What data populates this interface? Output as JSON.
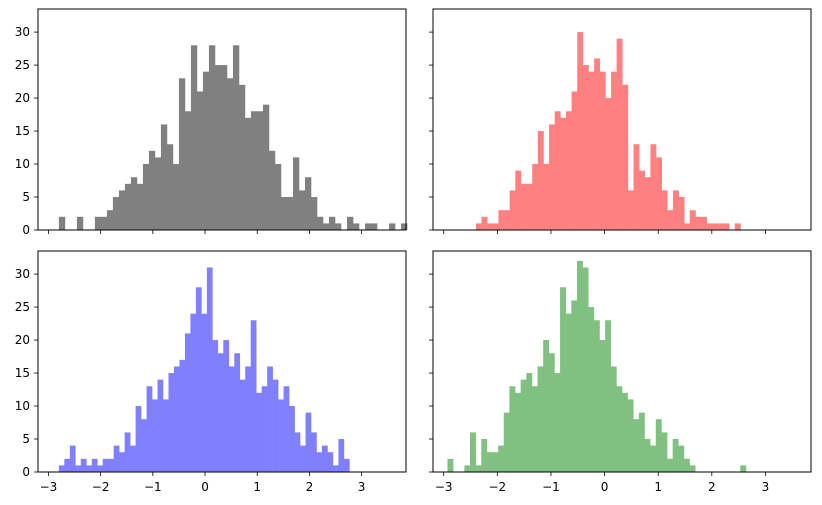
{
  "chart_data": [
    {
      "type": "bar",
      "panel": "top-left",
      "color": "#808080",
      "bin_start": -2.8,
      "bin_width": 0.115,
      "xlim": [
        -3.2,
        3.85
      ],
      "ylim": [
        0,
        33.5
      ],
      "x_ticks": [
        -3,
        -2,
        -1,
        0,
        1,
        2,
        3
      ],
      "y_ticks": [
        0,
        5,
        10,
        15,
        20,
        25,
        30
      ],
      "x_tick_labels_visible": false,
      "y_tick_labels_visible": true,
      "values": [
        2,
        0,
        0,
        2,
        0,
        0,
        2,
        2,
        3,
        5,
        6,
        7,
        8,
        7,
        10,
        12,
        11,
        16,
        13,
        10,
        23,
        18,
        28,
        21,
        24,
        28,
        25,
        25,
        23,
        28,
        22,
        17,
        18,
        18,
        19,
        12,
        10,
        5,
        5,
        11,
        6,
        8,
        5,
        2,
        1,
        2,
        1,
        0,
        2,
        1,
        0,
        1,
        1,
        0,
        0,
        1,
        0,
        1
      ]
    },
    {
      "type": "bar",
      "panel": "top-right",
      "color": "#ff8080",
      "bin_start": -2.4,
      "bin_width": 0.105,
      "xlim": [
        -3.2,
        3.85
      ],
      "ylim": [
        0,
        33.5
      ],
      "x_ticks": [
        -3,
        -2,
        -1,
        0,
        1,
        2,
        3
      ],
      "y_ticks": [
        0,
        5,
        10,
        15,
        20,
        25,
        30
      ],
      "x_tick_labels_visible": false,
      "y_tick_labels_visible": false,
      "values": [
        1,
        2,
        1,
        1,
        3,
        3,
        6,
        9,
        7,
        7,
        10,
        15,
        10,
        16,
        18,
        17,
        18,
        21,
        30,
        25,
        24,
        26,
        24,
        20,
        24,
        29,
        22,
        6,
        13,
        9,
        8,
        13,
        11,
        6,
        3,
        6,
        5,
        1,
        3,
        2,
        2,
        1,
        1,
        1,
        1,
        0,
        1
      ]
    },
    {
      "type": "bar",
      "panel": "bottom-left",
      "color": "#8080ff",
      "bin_start": -2.8,
      "bin_width": 0.105,
      "xlim": [
        -3.2,
        3.85
      ],
      "ylim": [
        0,
        33.5
      ],
      "x_ticks": [
        -3,
        -2,
        -1,
        0,
        1,
        2,
        3
      ],
      "y_ticks": [
        0,
        5,
        10,
        15,
        20,
        25,
        30
      ],
      "x_tick_labels_visible": true,
      "y_tick_labels_visible": true,
      "values": [
        1,
        2,
        4,
        1,
        2,
        1,
        2,
        1,
        2,
        2,
        4,
        3,
        6,
        4,
        10,
        8,
        13,
        11,
        14,
        11,
        15,
        16,
        17,
        21,
        24,
        28,
        24,
        31,
        20,
        18,
        20,
        16,
        18,
        14,
        16,
        23,
        12,
        13,
        16,
        14,
        11,
        13,
        10,
        6,
        4,
        9,
        6,
        3,
        4,
        3,
        1,
        5,
        2
      ]
    },
    {
      "type": "bar",
      "panel": "bottom-right",
      "color": "#80c080",
      "bin_start": -2.93,
      "bin_width": 0.105,
      "xlim": [
        -3.2,
        3.85
      ],
      "ylim": [
        0,
        33.5
      ],
      "x_ticks": [
        -3,
        -2,
        -1,
        0,
        1,
        2,
        3
      ],
      "y_ticks": [
        0,
        5,
        10,
        15,
        20,
        25,
        30
      ],
      "x_tick_labels_visible": true,
      "y_tick_labels_visible": false,
      "values": [
        2,
        0,
        0,
        1,
        6,
        1,
        5,
        3,
        3,
        4,
        9,
        13,
        12,
        14,
        15,
        13,
        16,
        20,
        18,
        15,
        28,
        24,
        26,
        32,
        31,
        25,
        23,
        20,
        23,
        16,
        13,
        12,
        11,
        8,
        9,
        5,
        4,
        8,
        6,
        2,
        5,
        4,
        2,
        1,
        0,
        0,
        0,
        0,
        0,
        0,
        0,
        0,
        1
      ]
    }
  ]
}
